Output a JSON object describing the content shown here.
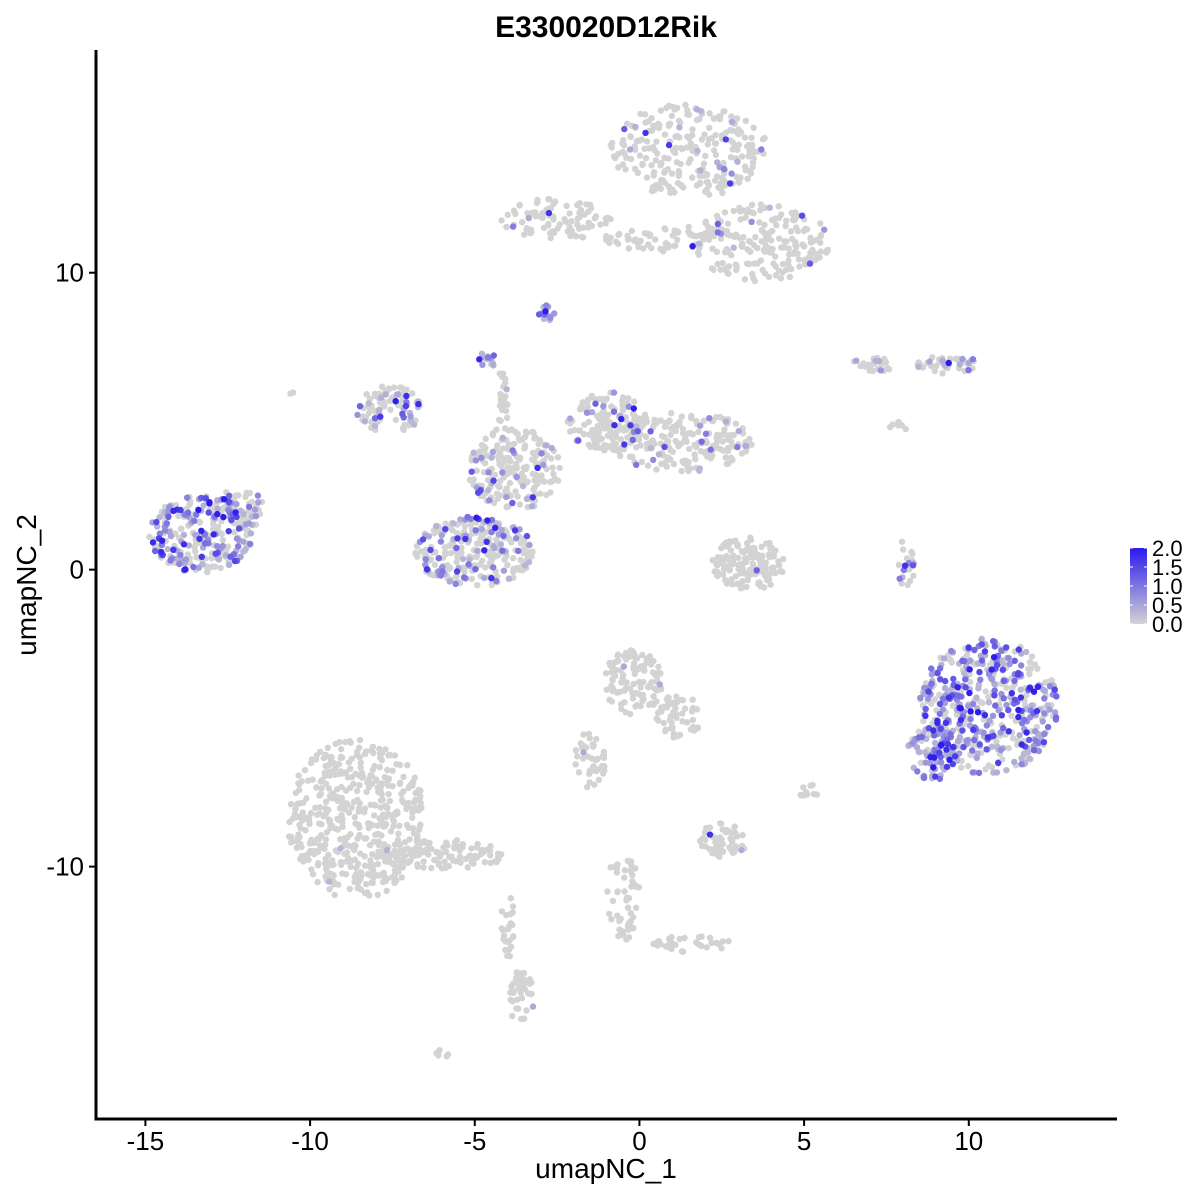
{
  "chart_data": {
    "type": "scatter",
    "title": "E330020D12Rik",
    "xlabel": "umapNC_1",
    "ylabel": "umapNC_2",
    "xlim": [
      -16.5,
      14.5
    ],
    "ylim": [
      -18.5,
      17.5
    ],
    "x_ticks": [
      -15,
      -10,
      -5,
      0,
      5,
      10
    ],
    "y_ticks": [
      -10,
      0,
      10
    ],
    "x_tick_labels": [
      "-15",
      "-10",
      "-5",
      "0",
      "5",
      "10"
    ],
    "y_tick_labels": [
      "-10",
      "0",
      "10"
    ],
    "grid": false,
    "legend_position": "right",
    "color_scale": {
      "low_color": "#d3d3d3",
      "high_color": "#2a1aee",
      "min": 0.0,
      "max": 2.0,
      "tick_values": [
        0.0,
        0.5,
        1.0,
        1.5,
        2.0
      ],
      "tick_labels": [
        "0.0",
        "0.5",
        "1.0",
        "1.5",
        "2.0"
      ]
    },
    "clusters": [
      {
        "cx": 1.5,
        "cy": 14.1,
        "rx": 2.4,
        "ry": 1.6,
        "n": 260,
        "expr_frac": 0.08
      },
      {
        "cx": 3.7,
        "cy": 11.0,
        "rx": 2.1,
        "ry": 1.3,
        "n": 200,
        "expr_frac": 0.05
      },
      {
        "cx": -2.5,
        "cy": 11.8,
        "rx": 1.7,
        "ry": 0.7,
        "n": 90,
        "expr_frac": 0.04
      },
      {
        "cx": 0.5,
        "cy": 11.2,
        "rx": 1.6,
        "ry": 0.5,
        "n": 60,
        "expr_frac": 0.05
      },
      {
        "cx": -2.8,
        "cy": 8.6,
        "rx": 0.25,
        "ry": 0.3,
        "n": 12,
        "expr_frac": 0.9
      },
      {
        "cx": -13.3,
        "cy": 1.2,
        "rx": 1.6,
        "ry": 1.3,
        "n": 260,
        "expr_frac": 0.55
      },
      {
        "cx": -12.2,
        "cy": 2.0,
        "rx": 0.8,
        "ry": 0.8,
        "n": 50,
        "expr_frac": 0.3
      },
      {
        "cx": -7.6,
        "cy": 5.4,
        "rx": 1.0,
        "ry": 0.8,
        "n": 90,
        "expr_frac": 0.35
      },
      {
        "cx": -5.0,
        "cy": 0.6,
        "rx": 1.8,
        "ry": 1.2,
        "n": 280,
        "expr_frac": 0.3
      },
      {
        "cx": -3.8,
        "cy": 3.4,
        "rx": 1.4,
        "ry": 1.4,
        "n": 200,
        "expr_frac": 0.12
      },
      {
        "cx": -1.0,
        "cy": 5.0,
        "rx": 1.2,
        "ry": 1.0,
        "n": 140,
        "expr_frac": 0.15
      },
      {
        "cx": 1.3,
        "cy": 4.3,
        "rx": 2.2,
        "ry": 1.0,
        "n": 200,
        "expr_frac": 0.12
      },
      {
        "cx": -4.6,
        "cy": 7.1,
        "rx": 0.3,
        "ry": 0.3,
        "n": 15,
        "expr_frac": 0.6
      },
      {
        "cx": -4.2,
        "cy": 5.5,
        "rx": 0.2,
        "ry": 1.2,
        "n": 25,
        "expr_frac": 0.1
      },
      {
        "cx": 3.3,
        "cy": 0.2,
        "rx": 1.1,
        "ry": 0.9,
        "n": 140,
        "expr_frac": 0.02
      },
      {
        "cx": 9.4,
        "cy": 6.9,
        "rx": 1.0,
        "ry": 0.3,
        "n": 45,
        "expr_frac": 0.25
      },
      {
        "cx": 7.1,
        "cy": 6.9,
        "rx": 0.7,
        "ry": 0.25,
        "n": 25,
        "expr_frac": 0.15
      },
      {
        "cx": 8.1,
        "cy": 0.2,
        "rx": 0.25,
        "ry": 0.9,
        "n": 20,
        "expr_frac": 0.5
      },
      {
        "cx": 10.6,
        "cy": -4.6,
        "rx": 2.1,
        "ry": 2.3,
        "n": 480,
        "expr_frac": 0.6
      },
      {
        "cx": 8.9,
        "cy": -6.2,
        "rx": 0.8,
        "ry": 0.9,
        "n": 80,
        "expr_frac": 0.75
      },
      {
        "cx": -8.6,
        "cy": -8.4,
        "rx": 2.1,
        "ry": 2.7,
        "n": 480,
        "expr_frac": 0.003
      },
      {
        "cx": -6.0,
        "cy": -9.6,
        "rx": 2.0,
        "ry": 0.5,
        "n": 110,
        "expr_frac": 0.0
      },
      {
        "cx": -3.6,
        "cy": -14.4,
        "rx": 0.4,
        "ry": 0.9,
        "n": 40,
        "expr_frac": 0.03
      },
      {
        "cx": -4.0,
        "cy": -12.0,
        "rx": 0.2,
        "ry": 1.2,
        "n": 25,
        "expr_frac": 0.0
      },
      {
        "cx": -0.2,
        "cy": -3.8,
        "rx": 0.9,
        "ry": 1.1,
        "n": 110,
        "expr_frac": 0.02
      },
      {
        "cx": 1.2,
        "cy": -4.9,
        "rx": 0.7,
        "ry": 0.8,
        "n": 50,
        "expr_frac": 0.0
      },
      {
        "cx": -1.5,
        "cy": -6.4,
        "rx": 0.5,
        "ry": 1.0,
        "n": 40,
        "expr_frac": 0.02
      },
      {
        "cx": 2.5,
        "cy": -9.1,
        "rx": 0.8,
        "ry": 0.6,
        "n": 55,
        "expr_frac": 0.02
      },
      {
        "cx": -0.5,
        "cy": -11.0,
        "rx": 0.5,
        "ry": 1.6,
        "n": 50,
        "expr_frac": 0.0
      },
      {
        "cx": 1.6,
        "cy": -12.6,
        "rx": 1.2,
        "ry": 0.3,
        "n": 30,
        "expr_frac": 0.0
      },
      {
        "cx": 5.1,
        "cy": -7.5,
        "rx": 0.3,
        "ry": 0.3,
        "n": 10,
        "expr_frac": 0.0
      },
      {
        "cx": -6.0,
        "cy": -16.3,
        "rx": 0.2,
        "ry": 0.15,
        "n": 5,
        "expr_frac": 0.0
      },
      {
        "cx": -10.6,
        "cy": 6.0,
        "rx": 0.1,
        "ry": 0.1,
        "n": 2,
        "expr_frac": 0.0
      },
      {
        "cx": 7.9,
        "cy": 4.8,
        "rx": 0.3,
        "ry": 0.3,
        "n": 6,
        "expr_frac": 0.0
      }
    ]
  }
}
